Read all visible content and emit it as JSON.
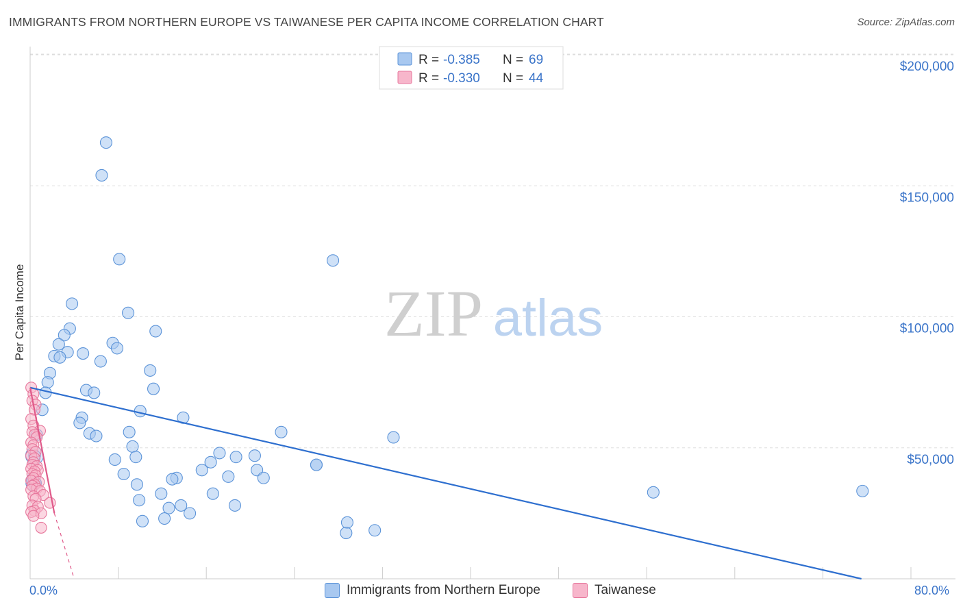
{
  "title": "IMMIGRANTS FROM NORTHERN EUROPE VS TAIWANESE PER CAPITA INCOME CORRELATION CHART",
  "source": "Source: ZipAtlas.com",
  "watermark": {
    "zip": "ZIP",
    "atlas": "atlas"
  },
  "colors": {
    "blue_fill": "#a8c8f0",
    "blue_stroke": "#5b93d8",
    "blue_line": "#2e6fcf",
    "pink_fill": "#f7b6cb",
    "pink_stroke": "#e7779c",
    "pink_line": "#e05a8a",
    "axis_text": "#3a74c9",
    "grid": "#dddddd"
  },
  "legend_top": [
    {
      "r_label": "R =",
      "r_value": "-0.385",
      "n_label": "N =",
      "n_value": "69"
    },
    {
      "r_label": "R =",
      "r_value": "-0.330",
      "n_label": "N =",
      "n_value": "44"
    }
  ],
  "legend_bottom": [
    {
      "label": "Immigrants from Northern Europe"
    },
    {
      "label": "Taiwanese"
    }
  ],
  "chart_data": {
    "type": "scatter",
    "title": "IMMIGRANTS FROM NORTHERN EUROPE VS TAIWANESE PER CAPITA INCOME CORRELATION CHART",
    "xlabel": "",
    "ylabel": "Per Capita Income",
    "xlim": [
      0,
      80
    ],
    "ylim": [
      0,
      200000
    ],
    "x_tick_labels": [
      "0.0%",
      "80.0%"
    ],
    "y_ticks": [
      50000,
      100000,
      150000,
      200000
    ],
    "y_tick_labels": [
      "$50,000",
      "$100,000",
      "$150,000",
      "$200,000"
    ],
    "grid": true,
    "series": [
      {
        "name": "Immigrants from Northern Europe",
        "r": -0.385,
        "n": 69,
        "trend": {
          "x0": 0.0,
          "y0": 73000,
          "x1": 75.5,
          "y1": 0
        },
        "points": [
          [
            6.9,
            166500
          ],
          [
            6.5,
            154000
          ],
          [
            8.1,
            122000
          ],
          [
            27.5,
            121500
          ],
          [
            3.8,
            105000
          ],
          [
            8.9,
            101500
          ],
          [
            11.4,
            94500
          ],
          [
            3.6,
            95500
          ],
          [
            3.1,
            93000
          ],
          [
            7.5,
            90000
          ],
          [
            2.6,
            89500
          ],
          [
            7.9,
            88000
          ],
          [
            3.4,
            86500
          ],
          [
            4.8,
            86000
          ],
          [
            2.2,
            85000
          ],
          [
            2.7,
            84500
          ],
          [
            6.4,
            83000
          ],
          [
            10.9,
            79500
          ],
          [
            1.8,
            78500
          ],
          [
            1.6,
            75000
          ],
          [
            11.2,
            72500
          ],
          [
            5.1,
            72000
          ],
          [
            5.8,
            71000
          ],
          [
            1.4,
            71000
          ],
          [
            1.1,
            64500
          ],
          [
            10.0,
            64000
          ],
          [
            4.7,
            61500
          ],
          [
            13.9,
            61500
          ],
          [
            4.5,
            59500
          ],
          [
            22.8,
            56000
          ],
          [
            9.0,
            56000
          ],
          [
            5.4,
            55500
          ],
          [
            33.0,
            54000
          ],
          [
            6.0,
            54500
          ],
          [
            9.3,
            50500
          ],
          [
            17.2,
            48000
          ],
          [
            20.4,
            47000
          ],
          [
            18.7,
            46500
          ],
          [
            9.6,
            46500
          ],
          [
            16.4,
            44500
          ],
          [
            7.7,
            45500
          ],
          [
            26.0,
            43500
          ],
          [
            26.0,
            43500
          ],
          [
            15.6,
            41500
          ],
          [
            20.6,
            41500
          ],
          [
            8.5,
            40000
          ],
          [
            18.0,
            39000
          ],
          [
            21.2,
            38500
          ],
          [
            13.3,
            38500
          ],
          [
            12.9,
            38000
          ],
          [
            9.7,
            36000
          ],
          [
            11.9,
            32500
          ],
          [
            16.6,
            32500
          ],
          [
            56.6,
            33000
          ],
          [
            75.6,
            33500
          ],
          [
            9.9,
            30000
          ],
          [
            13.7,
            28000
          ],
          [
            18.6,
            28000
          ],
          [
            12.6,
            27000
          ],
          [
            14.5,
            25000
          ],
          [
            12.2,
            23000
          ],
          [
            10.2,
            22000
          ],
          [
            28.8,
            21500
          ],
          [
            28.7,
            17500
          ],
          [
            31.3,
            18500
          ],
          [
            0.4,
            47000
          ],
          [
            0.6,
            55000
          ],
          [
            0.2,
            38000
          ],
          [
            0.5,
            36500
          ]
        ]
      },
      {
        "name": "Taiwanese",
        "r": -0.33,
        "n": 44,
        "trend": {
          "x0": 0.0,
          "y0": 73000,
          "x1": 2.2,
          "y1": 25000
        },
        "trend_ext": {
          "x0": 2.2,
          "y0": 25000,
          "x1": 4.0,
          "y1": 0
        },
        "points": [
          [
            0.1,
            73000
          ],
          [
            0.3,
            70500
          ],
          [
            0.2,
            68000
          ],
          [
            0.5,
            66500
          ],
          [
            0.4,
            64500
          ],
          [
            0.1,
            61000
          ],
          [
            0.3,
            58500
          ],
          [
            0.9,
            56500
          ],
          [
            0.2,
            56000
          ],
          [
            0.4,
            55000
          ],
          [
            0.6,
            54000
          ],
          [
            0.1,
            52000
          ],
          [
            0.3,
            51000
          ],
          [
            0.2,
            49500
          ],
          [
            0.5,
            48500
          ],
          [
            0.1,
            47000
          ],
          [
            0.4,
            46000
          ],
          [
            0.3,
            44500
          ],
          [
            0.2,
            43500
          ],
          [
            0.6,
            43000
          ],
          [
            0.1,
            42000
          ],
          [
            0.7,
            41500
          ],
          [
            0.4,
            41000
          ],
          [
            0.2,
            40000
          ],
          [
            0.5,
            39500
          ],
          [
            0.3,
            38500
          ],
          [
            0.1,
            37500
          ],
          [
            0.8,
            37000
          ],
          [
            0.4,
            36000
          ],
          [
            0.2,
            35500
          ],
          [
            0.6,
            34500
          ],
          [
            0.1,
            34000
          ],
          [
            0.9,
            33500
          ],
          [
            1.2,
            32000
          ],
          [
            0.3,
            31500
          ],
          [
            0.5,
            30500
          ],
          [
            1.8,
            29000
          ],
          [
            0.2,
            28000
          ],
          [
            0.7,
            27500
          ],
          [
            0.4,
            26000
          ],
          [
            0.1,
            25500
          ],
          [
            1.0,
            25000
          ],
          [
            0.3,
            24000
          ],
          [
            1.0,
            19500
          ]
        ]
      }
    ]
  }
}
